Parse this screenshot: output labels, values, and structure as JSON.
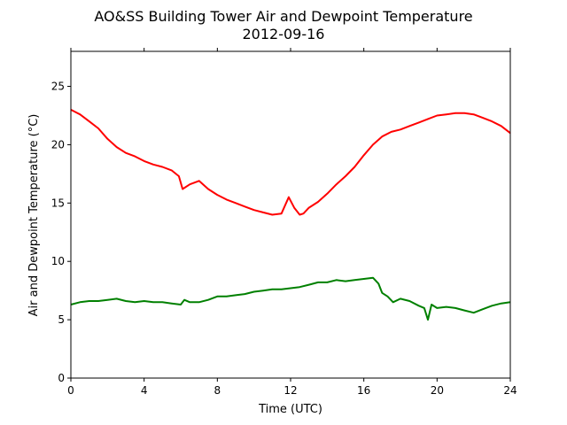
{
  "chart_data": {
    "type": "line",
    "title": "AO&SS Building Tower Air and Dewpoint Temperature",
    "subtitle": "2012-09-16",
    "xlabel": "Time (UTC)",
    "ylabel": "Air and Dewpoint Temperature (°C)",
    "xlim": [
      0,
      24
    ],
    "ylim": [
      0,
      28
    ],
    "xticks": [
      0,
      4,
      8,
      12,
      16,
      20,
      24
    ],
    "yticks": [
      0,
      5,
      10,
      15,
      20,
      25
    ],
    "grid": false,
    "legend": "none",
    "series": [
      {
        "color": "#ff0000",
        "x": [
          0,
          0.5,
          1,
          1.5,
          2,
          2.5,
          3,
          3.5,
          4,
          4.5,
          5,
          5.5,
          5.9,
          6.1,
          6.5,
          7,
          7.5,
          8,
          8.5,
          9,
          9.5,
          10,
          10.5,
          11,
          11.5,
          11.9,
          12.2,
          12.5,
          12.7,
          13,
          13.5,
          14,
          14.5,
          15,
          15.5,
          16,
          16.5,
          17,
          17.5,
          18,
          18.5,
          19,
          19.5,
          20,
          20.5,
          21,
          21.5,
          22,
          22.5,
          23,
          23.5,
          24
        ],
        "y": [
          23.0,
          22.6,
          22.0,
          21.4,
          20.5,
          19.8,
          19.3,
          19.0,
          18.6,
          18.3,
          18.1,
          17.8,
          17.3,
          16.2,
          16.6,
          16.9,
          16.2,
          15.7,
          15.3,
          15.0,
          14.7,
          14.4,
          14.2,
          14.0,
          14.1,
          15.5,
          14.6,
          14.0,
          14.1,
          14.6,
          15.1,
          15.8,
          16.6,
          17.3,
          18.1,
          19.1,
          20.0,
          20.7,
          21.1,
          21.3,
          21.6,
          21.9,
          22.2,
          22.5,
          22.6,
          22.7,
          22.7,
          22.6,
          22.3,
          22.0,
          21.6,
          21.0
        ]
      },
      {
        "color": "#008000",
        "x": [
          0,
          0.5,
          1,
          1.5,
          2,
          2.5,
          3,
          3.5,
          4,
          4.5,
          5,
          5.5,
          6,
          6.2,
          6.5,
          7,
          7.5,
          8,
          8.5,
          9,
          9.5,
          10,
          10.5,
          11,
          11.5,
          12,
          12.5,
          13,
          13.5,
          14,
          14.5,
          15,
          15.5,
          16,
          16.5,
          16.8,
          17,
          17.3,
          17.6,
          18,
          18.5,
          19,
          19.3,
          19.5,
          19.7,
          20,
          20.5,
          21,
          21.5,
          22,
          22.5,
          23,
          23.5,
          24
        ],
        "y": [
          6.3,
          6.5,
          6.6,
          6.6,
          6.7,
          6.8,
          6.6,
          6.5,
          6.6,
          6.5,
          6.5,
          6.4,
          6.3,
          6.7,
          6.5,
          6.5,
          6.7,
          7.0,
          7.0,
          7.1,
          7.2,
          7.4,
          7.5,
          7.6,
          7.6,
          7.7,
          7.8,
          8.0,
          8.2,
          8.2,
          8.4,
          8.3,
          8.4,
          8.5,
          8.6,
          8.1,
          7.3,
          7.0,
          6.5,
          6.8,
          6.6,
          6.2,
          6.0,
          5.0,
          6.3,
          6.0,
          6.1,
          6.0,
          5.8,
          5.6,
          5.9,
          6.2,
          6.4,
          6.5
        ]
      }
    ]
  }
}
